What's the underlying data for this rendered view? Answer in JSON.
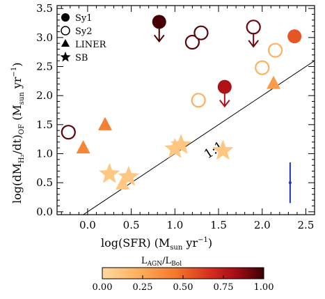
{
  "chart_data": {
    "type": "scatter",
    "xlabel": "log(SFR) (M",
    "xlabel_sub": "sun",
    "xlabel_tail": " yr",
    "xlabel_sup": "−1",
    "xlabel_close": ")",
    "ylabel": "log(dM",
    "ylabel_sub": "H₂",
    "ylabel_mid": "/dt)",
    "ylabel_sub2": "OF",
    "ylabel_tail": " (M",
    "ylabel_sub3": "sun",
    "ylabel_tail2": " yr",
    "ylabel_sup": "−1",
    "ylabel_close": ")",
    "xlim": [
      -0.35,
      2.6
    ],
    "ylim": [
      -0.05,
      3.55
    ],
    "x_ticks": [
      0.0,
      0.5,
      1.0,
      1.5,
      2.0,
      2.5
    ],
    "x_tick_labels": [
      "0.0",
      "0.5",
      "1.0",
      "1.5",
      "2.0",
      "2.5"
    ],
    "y_ticks": [
      0.0,
      0.5,
      1.0,
      1.5,
      2.0,
      2.5,
      3.0,
      3.5
    ],
    "y_tick_labels": [
      "0.0",
      "0.5",
      "1.0",
      "1.5",
      "2.0",
      "2.5",
      "3.0",
      "3.5"
    ],
    "grid": false,
    "legend_placement": "top-left",
    "legend": [
      {
        "label": "Sy1",
        "marker": "filled-circle"
      },
      {
        "label": "Sy2",
        "marker": "open-circle"
      },
      {
        "label": "LINER",
        "marker": "triangle"
      },
      {
        "label": "SB",
        "marker": "star"
      }
    ],
    "one_to_one_label": "1:1",
    "points": [
      {
        "x": 0.82,
        "y": 3.27,
        "type": "Sy1",
        "lagn": 0.98,
        "upper_limit": true
      },
      {
        "x": 1.57,
        "y": 2.15,
        "type": "Sy1",
        "lagn": 0.8,
        "upper_limit": true
      },
      {
        "x": 2.37,
        "y": 3.02,
        "type": "Sy1",
        "lagn": 0.55,
        "upper_limit": false
      },
      {
        "x": -0.22,
        "y": 1.37,
        "type": "Sy2",
        "lagn": 0.95,
        "upper_limit": false
      },
      {
        "x": 1.2,
        "y": 2.92,
        "type": "Sy2",
        "lagn": 0.95,
        "upper_limit": false
      },
      {
        "x": 1.3,
        "y": 3.08,
        "type": "Sy2",
        "lagn": 0.95,
        "upper_limit": false
      },
      {
        "x": 1.9,
        "y": 3.18,
        "type": "Sy2",
        "lagn": 0.92,
        "upper_limit": true
      },
      {
        "x": 1.27,
        "y": 1.92,
        "type": "Sy2",
        "lagn": 0.22,
        "upper_limit": false
      },
      {
        "x": 2.0,
        "y": 2.48,
        "type": "Sy2",
        "lagn": 0.22,
        "upper_limit": false
      },
      {
        "x": 2.15,
        "y": 2.78,
        "type": "Sy2",
        "lagn": 0.22,
        "upper_limit": false
      },
      {
        "x": -0.05,
        "y": 1.1,
        "type": "LINER",
        "lagn": 0.4,
        "upper_limit": false
      },
      {
        "x": 0.2,
        "y": 1.5,
        "type": "LINER",
        "lagn": 0.42,
        "upper_limit": false
      },
      {
        "x": 2.13,
        "y": 2.21,
        "type": "LINER",
        "lagn": 0.3,
        "upper_limit": false
      },
      {
        "x": 0.4,
        "y": 0.48,
        "type": "LINER",
        "lagn": 0.1,
        "upper_limit": false
      },
      {
        "x": 0.25,
        "y": 0.65,
        "type": "SB",
        "lagn": 0.1,
        "upper_limit": false
      },
      {
        "x": 0.47,
        "y": 0.6,
        "type": "SB",
        "lagn": 0.1,
        "upper_limit": false
      },
      {
        "x": 1.0,
        "y": 1.08,
        "type": "SB",
        "lagn": 0.1,
        "upper_limit": false
      },
      {
        "x": 1.07,
        "y": 1.15,
        "type": "SB",
        "lagn": 0.1,
        "upper_limit": false
      },
      {
        "x": 1.55,
        "y": 1.05,
        "type": "SB",
        "lagn": 0.1,
        "upper_limit": false
      }
    ],
    "error_bar": {
      "x": 2.32,
      "y": 0.5,
      "y_low": 0.15,
      "y_high": 0.85,
      "color": "#2233bb"
    },
    "colorbar": {
      "label": "L",
      "label_sub": "AGN",
      "label_mid": "/L",
      "label_sub2": "Bol",
      "range": [
        0.0,
        1.0
      ],
      "ticks": [
        0.0,
        0.25,
        0.5,
        0.75,
        1.0
      ],
      "tick_labels": [
        "0.00",
        "0.25",
        "0.50",
        "0.75",
        "1.00"
      ],
      "colors": [
        "#ffd9a0",
        "#ffb463",
        "#f4792b",
        "#d8331f",
        "#a80d17",
        "#3a0004"
      ]
    }
  }
}
